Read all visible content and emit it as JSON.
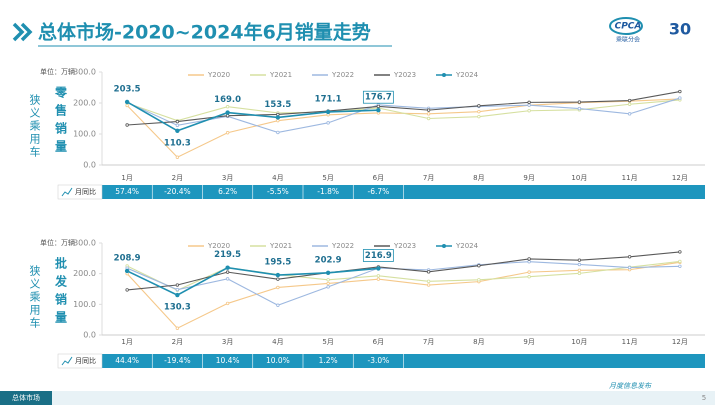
{
  "header": {
    "title": "总体市场-2020~2024年6月销量走势",
    "logo": "CPCA",
    "logo_sub": "乘联分会",
    "anniversary": "30"
  },
  "footer": {
    "tab": "总体市场",
    "note": "月度信息发布",
    "page": "5"
  },
  "chart_data": [
    {
      "type": "line",
      "segment": "狭义乘用车",
      "metric": "零售销量",
      "unit": "单位：万辆",
      "categories": [
        "1月",
        "2月",
        "3月",
        "4月",
        "5月",
        "6月",
        "7月",
        "8月",
        "9月",
        "10月",
        "11月",
        "12月"
      ],
      "ylim": [
        0,
        300
      ],
      "yticks": [
        {
          "value": 0,
          "label": "0.0"
        },
        {
          "value": 100,
          "label": "100.0"
        },
        {
          "value": 200,
          "label": "200.0"
        },
        {
          "value": 300,
          "label": "300.0"
        }
      ],
      "grid": false,
      "legend": "top",
      "series": [
        {
          "name": "Y2020",
          "color": "#f5c88a",
          "values": [
            192,
            25,
            104,
            143,
            162,
            168,
            165,
            172,
            193,
            201,
            206,
            213
          ]
        },
        {
          "name": "Y2021",
          "color": "#d6e0a0",
          "values": [
            200,
            143,
            188,
            168,
            171,
            184,
            150,
            156,
            175,
            178,
            196,
            210
          ]
        },
        {
          "name": "Y2022",
          "color": "#9db8e0",
          "values": [
            202,
            128,
            157,
            105,
            136,
            194,
            183,
            189,
            193,
            182,
            165,
            216
          ]
        },
        {
          "name": "Y2023",
          "color": "#595959",
          "values": [
            129,
            140,
            159,
            163,
            174,
            189,
            177,
            191,
            202,
            203,
            208,
            237
          ]
        },
        {
          "name": "Y2024",
          "color": "#1f8fb0",
          "markers": true,
          "values": [
            203.5,
            110.3,
            169.0,
            153.5,
            171.1,
            176.7,
            null,
            null,
            null,
            null,
            null,
            null
          ],
          "value_labels": [
            "203.5",
            "110.3",
            "169.0",
            "153.5",
            "171.1",
            "176.7",
            null,
            null,
            null,
            null,
            null,
            null
          ]
        }
      ],
      "yoy": {
        "label": "月同比",
        "values": [
          "57.4%",
          "-20.4%",
          "6.2%",
          "-5.5%",
          "-1.8%",
          "-6.7%"
        ]
      }
    },
    {
      "type": "line",
      "segment": "狭义乘用车",
      "metric": "批发销量",
      "unit": "单位：万辆",
      "categories": [
        "1月",
        "2月",
        "3月",
        "4月",
        "5月",
        "6月",
        "7月",
        "8月",
        "9月",
        "10月",
        "11月",
        "12月"
      ],
      "ylim": [
        0,
        300
      ],
      "yticks": [
        {
          "value": 0,
          "label": "0.0"
        },
        {
          "value": 100,
          "label": "100.0"
        },
        {
          "value": 200,
          "label": "200.0"
        },
        {
          "value": 300,
          "label": "300.0"
        }
      ],
      "grid": false,
      "legend": "top",
      "series": [
        {
          "name": "Y2020",
          "color": "#f5c88a",
          "values": [
            200,
            22,
            103,
            155,
            168,
            182,
            163,
            174,
            205,
            211,
            213,
            237
          ]
        },
        {
          "name": "Y2021",
          "color": "#d6e0a0",
          "values": [
            225,
            146,
            220,
            197,
            180,
            193,
            175,
            180,
            190,
            201,
            221,
            240
          ]
        },
        {
          "name": "Y2022",
          "color": "#9db8e0",
          "values": [
            218,
            148,
            183,
            97,
            157,
            218,
            212,
            229,
            239,
            230,
            220,
            224
          ]
        },
        {
          "name": "Y2023",
          "color": "#595959",
          "values": [
            147,
            163,
            205,
            182,
            203,
            222,
            206,
            226,
            248,
            244,
            255,
            271
          ]
        },
        {
          "name": "Y2024",
          "color": "#1f8fb0",
          "markers": true,
          "values": [
            208.9,
            130.3,
            219.5,
            195.5,
            202.9,
            216.9,
            null,
            null,
            null,
            null,
            null,
            null
          ],
          "value_labels": [
            "208.9",
            "130.3",
            "219.5",
            "195.5",
            "202.9",
            "216.9",
            null,
            null,
            null,
            null,
            null,
            null
          ]
        }
      ],
      "yoy": {
        "label": "月同比",
        "values": [
          "44.4%",
          "-19.4%",
          "10.4%",
          "10.0%",
          "1.2%",
          "-3.0%"
        ]
      }
    }
  ]
}
